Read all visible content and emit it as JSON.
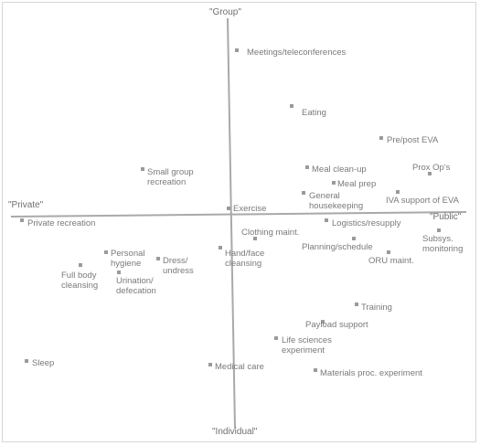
{
  "axes": {
    "top": "\"Group\"",
    "bottom": "\"Individual\"",
    "left": "\"Private\"",
    "right": "\"Public\""
  },
  "activities": [
    {
      "id": "meetings",
      "lines": [
        "Meetings/teleconferences"
      ]
    },
    {
      "id": "eating",
      "lines": [
        "Eating"
      ]
    },
    {
      "id": "pre-post-eva",
      "lines": [
        "Pre/post EVA"
      ]
    },
    {
      "id": "prox-ops",
      "lines": [
        "Prox Op's"
      ]
    },
    {
      "id": "meal-clean-up",
      "lines": [
        "Meal clean-up"
      ]
    },
    {
      "id": "meal-prep",
      "lines": [
        "Meal prep"
      ]
    },
    {
      "id": "small-group-recreation",
      "lines": [
        "Small group",
        "recreation"
      ]
    },
    {
      "id": "general-housekeeping",
      "lines": [
        "General",
        "housekeeping"
      ]
    },
    {
      "id": "iva-support-of-eva",
      "lines": [
        "IVA support of EVA"
      ]
    },
    {
      "id": "exercise",
      "lines": [
        "Exercise"
      ]
    },
    {
      "id": "private-recreation",
      "lines": [
        "Private recreation"
      ]
    },
    {
      "id": "logistics-resupply",
      "lines": [
        "Logistics/resupply"
      ]
    },
    {
      "id": "clothing-maint",
      "lines": [
        "Clothing maint."
      ]
    },
    {
      "id": "subsys-monitoring",
      "lines": [
        "Subsys.",
        "monitoring"
      ]
    },
    {
      "id": "planning-schedule",
      "lines": [
        "Planning/schedule"
      ]
    },
    {
      "id": "hand-face-cleansing",
      "lines": [
        "Hand/face",
        "cleansing"
      ]
    },
    {
      "id": "personal-hygiene",
      "lines": [
        "Personal",
        "hygiene"
      ]
    },
    {
      "id": "dress-undress",
      "lines": [
        "Dress/",
        "undress"
      ]
    },
    {
      "id": "oru-maint",
      "lines": [
        "ORU maint."
      ]
    },
    {
      "id": "full-body-cleansing",
      "lines": [
        "Full body",
        "cleansing"
      ]
    },
    {
      "id": "urination-defecation",
      "lines": [
        "Urination/",
        "defecation"
      ]
    },
    {
      "id": "training",
      "lines": [
        "Training"
      ]
    },
    {
      "id": "payload-support",
      "lines": [
        "Payload support"
      ]
    },
    {
      "id": "life-sciences-experiment",
      "lines": [
        "Life sciences",
        "experiment"
      ]
    },
    {
      "id": "sleep",
      "lines": [
        "Sleep"
      ]
    },
    {
      "id": "medical-care",
      "lines": [
        "Medical care"
      ]
    },
    {
      "id": "materials-proc-experiment",
      "lines": [
        "Materials proc. experiment"
      ]
    }
  ]
}
